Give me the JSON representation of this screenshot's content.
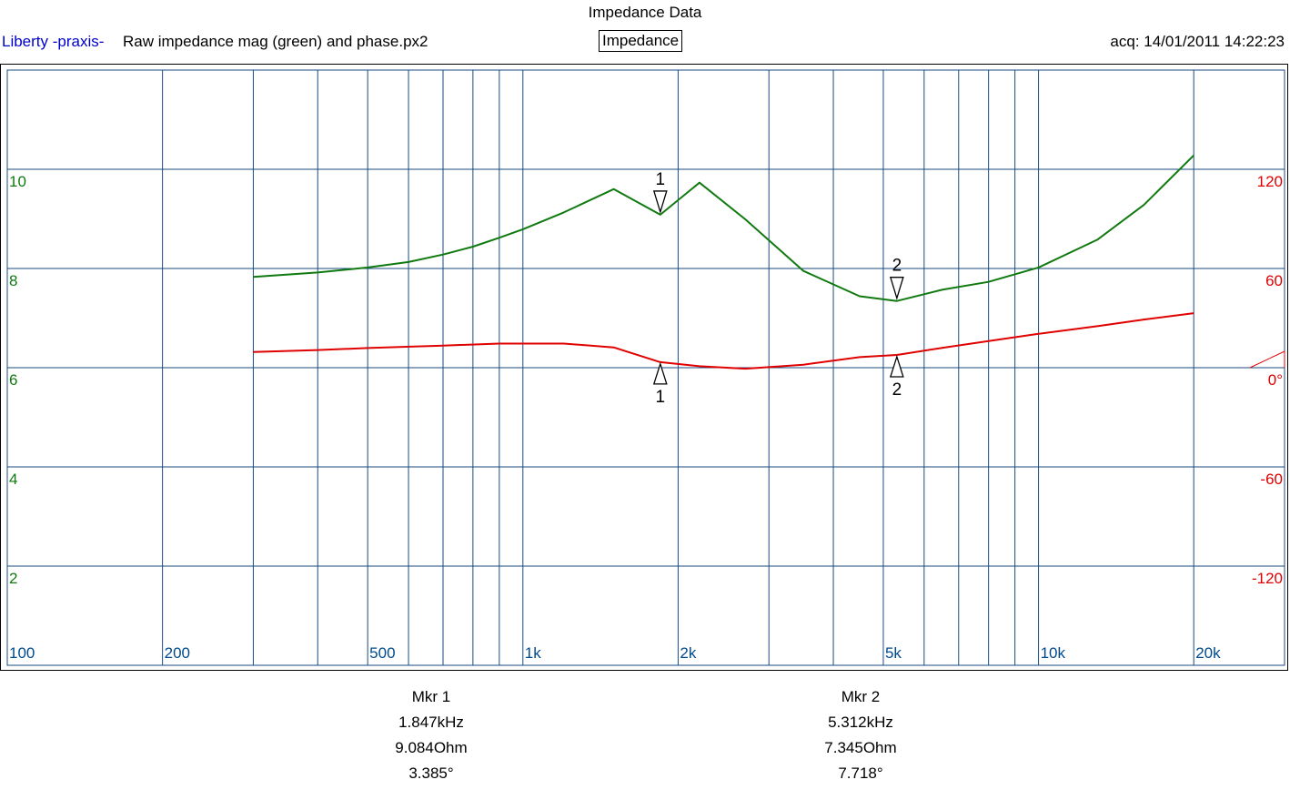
{
  "header": {
    "title": "Impedance Data",
    "brand": "Liberty -praxis-",
    "file": "Raw impedance mag (green) and phase.px2",
    "mode_button": "Impedance",
    "acq": "acq: 14/01/2011 14:22:23"
  },
  "colors": {
    "magnitude": "#107a10",
    "phase": "#e00000",
    "grid": "#1a4a80",
    "freq_label": "#004a8c",
    "brand": "#0000cc"
  },
  "chart_data": {
    "type": "line",
    "x_scale": "log",
    "xlim": [
      100,
      30000
    ],
    "x_ticks": [
      {
        "value": 100,
        "label": "100"
      },
      {
        "value": 200,
        "label": "200"
      },
      {
        "value": 500,
        "label": "500"
      },
      {
        "value": 1000,
        "label": "1k"
      },
      {
        "value": 2000,
        "label": "2k"
      },
      {
        "value": 5000,
        "label": "5k"
      },
      {
        "value": 10000,
        "label": "10k"
      },
      {
        "value": 20000,
        "label": "20k"
      }
    ],
    "y_left": {
      "lim": [
        0,
        12
      ],
      "ticks": [
        {
          "value": 10,
          "label": "10"
        },
        {
          "value": 8,
          "label": "8"
        },
        {
          "value": 6,
          "label": "6"
        },
        {
          "value": 4,
          "label": "4"
        },
        {
          "value": 2,
          "label": "2"
        }
      ]
    },
    "y_right": {
      "lim": [
        -180,
        180
      ],
      "ticks": [
        {
          "value": 120,
          "label": "120"
        },
        {
          "value": 60,
          "label": "60"
        },
        {
          "value": 0,
          "label": "0°"
        },
        {
          "value": -60,
          "label": "-60"
        },
        {
          "value": -120,
          "label": "-120"
        }
      ]
    },
    "grid": true,
    "series": [
      {
        "axis": "left",
        "color": "#107a10",
        "x": [
          300,
          400,
          500,
          600,
          700,
          800,
          900,
          1000,
          1200,
          1500,
          1847,
          2200,
          2700,
          3500,
          4500,
          5312,
          6500,
          8000,
          10000,
          13000,
          16000,
          20000
        ],
        "y": [
          7.83,
          7.92,
          8.02,
          8.13,
          8.28,
          8.44,
          8.62,
          8.79,
          9.13,
          9.6,
          9.084,
          9.73,
          8.99,
          7.95,
          7.44,
          7.345,
          7.57,
          7.73,
          8.02,
          8.58,
          9.28,
          10.28
        ]
      },
      {
        "axis": "right",
        "color": "#e00000",
        "x": [
          300,
          400,
          500,
          700,
          900,
          1000,
          1200,
          1500,
          1847,
          2200,
          2700,
          3500,
          4500,
          5312,
          6500,
          8000,
          10000,
          13000,
          16000,
          20000
        ],
        "y": [
          9.5,
          10.7,
          11.9,
          13.4,
          14.6,
          14.6,
          14.6,
          12.3,
          3.385,
          0.9,
          -0.6,
          1.8,
          6.4,
          7.718,
          12.0,
          16.1,
          20.5,
          25.1,
          29.1,
          33.0
        ]
      }
    ],
    "markers": [
      {
        "id": "1",
        "freq": 1847,
        "mag": 9.084,
        "phase": 3.385
      },
      {
        "id": "2",
        "freq": 5312,
        "mag": 7.345,
        "phase": 7.718
      }
    ]
  },
  "readouts": [
    {
      "title": "Mkr 1",
      "freq": "1.847kHz",
      "mag": "9.084Ohm",
      "phase": "3.385°"
    },
    {
      "title": "Mkr 2",
      "freq": "5.312kHz",
      "mag": "7.345Ohm",
      "phase": "7.718°"
    }
  ]
}
